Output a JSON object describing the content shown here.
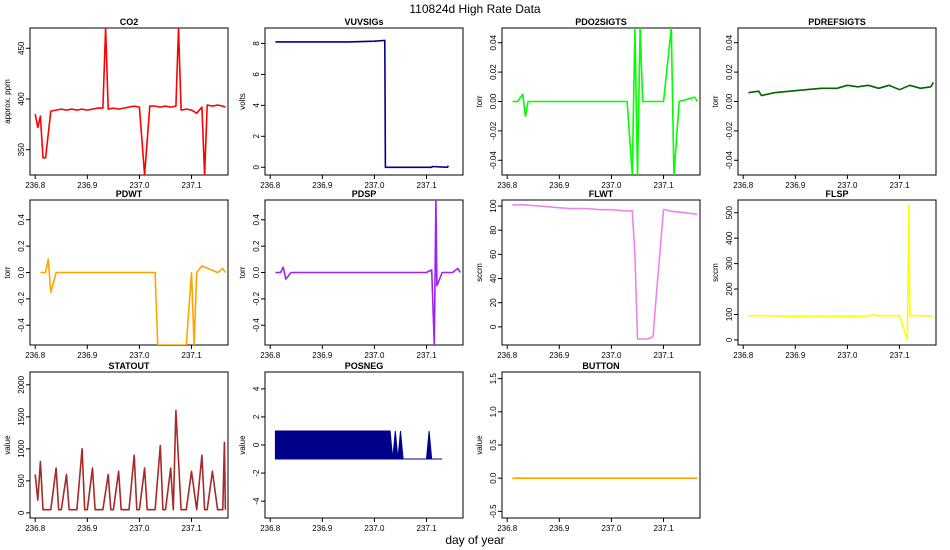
{
  "page": {
    "title": "110824d   High Rate Data",
    "xlabel": "day of year"
  },
  "chart_data": [
    {
      "type": "line",
      "title": "CO2",
      "ylabel": "approx. ppm",
      "color": "#ff0000",
      "xlim": [
        236.79,
        237.17
      ],
      "ylim": [
        325,
        470
      ],
      "xticks": [
        "236.8",
        "236.9",
        "237.0",
        "237.1"
      ],
      "yticks": [
        "350",
        "400",
        "450"
      ],
      "series": [
        {
          "x": [
            236.8,
            236.805,
            236.81,
            236.815,
            236.82,
            236.83,
            236.84,
            236.85,
            236.86,
            236.87,
            236.88,
            236.89,
            236.9,
            236.91,
            236.92,
            236.93,
            236.935,
            236.94,
            236.95,
            236.96,
            236.97,
            236.98,
            236.99,
            237.0,
            237.01,
            237.02,
            237.03,
            237.04,
            237.05,
            237.06,
            237.07,
            237.075,
            237.08,
            237.09,
            237.1,
            237.11,
            237.12,
            237.125,
            237.13,
            237.14,
            237.15,
            237.16,
            237.165
          ],
          "y": [
            385,
            372,
            383,
            342,
            342,
            388,
            389,
            390,
            389,
            390,
            389,
            390,
            389,
            390,
            391,
            391,
            470,
            390,
            391,
            390,
            391,
            392,
            393,
            392,
            325,
            393,
            393,
            392,
            393,
            392,
            393,
            470,
            389,
            390,
            389,
            386,
            392,
            325,
            394,
            393,
            394,
            393,
            392
          ]
        }
      ]
    },
    {
      "type": "line",
      "title": "VUVSIGs",
      "ylabel": "volts",
      "color": "#00008b",
      "xlim": [
        236.79,
        237.17
      ],
      "ylim": [
        -0.5,
        9.0
      ],
      "xticks": [
        "236.8",
        "236.9",
        "237.0",
        "237.1"
      ],
      "yticks": [
        "0",
        "2",
        "4",
        "6",
        "8"
      ],
      "series": [
        {
          "x": [
            236.81,
            236.85,
            236.9,
            236.95,
            237.0,
            237.02,
            237.021,
            237.11,
            237.111,
            237.14,
            237.142
          ],
          "y": [
            8.1,
            8.1,
            8.1,
            8.1,
            8.15,
            8.2,
            0.0,
            0.0,
            0.05,
            0.0,
            0.1
          ]
        }
      ]
    },
    {
      "type": "line",
      "title": "PDO2SIGTS",
      "ylabel": "torr",
      "color": "#00ff00",
      "xlim": [
        236.79,
        237.17
      ],
      "ylim": [
        -0.05,
        0.05
      ],
      "xticks": [
        "236.8",
        "236.9",
        "237.0",
        "237.1"
      ],
      "yticks": [
        "-0.04",
        "-0.02",
        "0.00",
        "0.02",
        "0.04"
      ],
      "series": [
        {
          "x": [
            236.81,
            236.82,
            236.83,
            236.835,
            236.84,
            236.9,
            236.95,
            237.0,
            237.03,
            237.04,
            237.045,
            237.05,
            237.055,
            237.06,
            237.1,
            237.115,
            237.12,
            237.13,
            237.16,
            237.165
          ],
          "y": [
            0.0,
            0.0,
            0.005,
            -0.01,
            0.0,
            0.0,
            0.0,
            0.0,
            0.0,
            -0.05,
            0.05,
            -0.05,
            0.05,
            0.0,
            0.0,
            0.05,
            -0.05,
            0.0,
            0.003,
            0.0
          ]
        }
      ]
    },
    {
      "type": "line",
      "title": "PDREFSIGTS",
      "ylabel": "torr",
      "color": "#006400",
      "xlim": [
        236.79,
        237.17
      ],
      "ylim": [
        -0.05,
        0.05
      ],
      "xticks": [
        "236.8",
        "236.9",
        "237.0",
        "237.1"
      ],
      "yticks": [
        "-0.04",
        "-0.02",
        "0.00",
        "0.02",
        "0.04"
      ],
      "series": [
        {
          "x": [
            236.81,
            236.83,
            236.835,
            236.86,
            236.89,
            236.92,
            236.95,
            236.98,
            237.0,
            237.02,
            237.04,
            237.06,
            237.08,
            237.1,
            237.12,
            237.14,
            237.16,
            237.165
          ],
          "y": [
            0.006,
            0.007,
            0.004,
            0.006,
            0.007,
            0.008,
            0.009,
            0.009,
            0.011,
            0.01,
            0.011,
            0.009,
            0.011,
            0.008,
            0.011,
            0.009,
            0.01,
            0.013
          ]
        }
      ]
    },
    {
      "type": "line",
      "title": "PDWT",
      "ylabel": "torr",
      "color": "#ffa500",
      "xlim": [
        236.79,
        237.17
      ],
      "ylim": [
        -0.55,
        0.55
      ],
      "xticks": [
        "236.8",
        "236.9",
        "237.0",
        "237.1"
      ],
      "yticks": [
        "-0.4",
        "-0.2",
        "0.0",
        "0.2",
        "0.4"
      ],
      "series": [
        {
          "x": [
            236.81,
            236.82,
            236.825,
            236.83,
            236.84,
            236.9,
            236.95,
            237.0,
            237.03,
            237.035,
            237.04,
            237.09,
            237.1,
            237.105,
            237.11,
            237.12,
            237.15,
            237.16,
            237.165
          ],
          "y": [
            0.0,
            0.0,
            0.1,
            -0.15,
            0.0,
            0.0,
            0.0,
            0.0,
            0.0,
            -0.55,
            -0.55,
            -0.55,
            0.0,
            -0.55,
            0.0,
            0.05,
            0.0,
            0.03,
            0.0
          ]
        }
      ]
    },
    {
      "type": "line",
      "title": "PDSP",
      "ylabel": "torr",
      "color": "#a020f0",
      "xlim": [
        236.79,
        237.17
      ],
      "ylim": [
        -0.55,
        0.55
      ],
      "xticks": [
        "236.8",
        "236.9",
        "237.0",
        "237.1"
      ],
      "yticks": [
        "-0.4",
        "-0.2",
        "0.0",
        "0.2",
        "0.4"
      ],
      "series": [
        {
          "x": [
            236.81,
            236.82,
            236.825,
            236.83,
            236.84,
            236.9,
            236.95,
            237.0,
            237.03,
            237.05,
            237.06,
            237.08,
            237.1,
            237.11,
            237.115,
            237.118,
            237.12,
            237.13,
            237.15,
            237.16,
            237.165
          ],
          "y": [
            0.0,
            0.0,
            0.04,
            -0.05,
            0.0,
            0.0,
            0.0,
            0.0,
            0.0,
            0.0,
            0.0,
            0.0,
            0.0,
            0.02,
            -0.55,
            0.55,
            -0.1,
            0.0,
            0.0,
            0.03,
            0.0
          ]
        }
      ]
    },
    {
      "type": "line",
      "title": "FLWT",
      "ylabel": "sccm",
      "color": "#ee82ee",
      "xlim": [
        236.79,
        237.17
      ],
      "ylim": [
        -15,
        105
      ],
      "xticks": [
        "236.8",
        "236.9",
        "237.0",
        "237.1"
      ],
      "yticks": [
        "0",
        "20",
        "40",
        "60",
        "80",
        "100"
      ],
      "series": [
        {
          "x": [
            236.81,
            236.83,
            236.86,
            236.89,
            236.92,
            236.95,
            236.98,
            237.0,
            237.03,
            237.04,
            237.045,
            237.05,
            237.07,
            237.08,
            237.085,
            237.1,
            237.105,
            237.11,
            237.13,
            237.15,
            237.165
          ],
          "y": [
            101,
            101,
            100,
            99,
            98,
            98,
            97,
            97,
            96,
            96,
            60,
            -10,
            -10,
            -8,
            20,
            97,
            97,
            96,
            95,
            94,
            93
          ]
        }
      ]
    },
    {
      "type": "line",
      "title": "FLSP",
      "ylabel": "sccm",
      "color": "#ffff00",
      "xlim": [
        236.79,
        237.17
      ],
      "ylim": [
        -20,
        550
      ],
      "xticks": [
        "236.8",
        "236.9",
        "237.0",
        "237.1"
      ],
      "yticks": [
        "0",
        "100",
        "200",
        "300",
        "400",
        "500"
      ],
      "series": [
        {
          "x": [
            236.81,
            236.85,
            236.9,
            236.95,
            237.0,
            237.04,
            237.05,
            237.055,
            237.1,
            237.115,
            237.118,
            237.12,
            237.125,
            237.14,
            237.165
          ],
          "y": [
            95,
            95,
            93,
            94,
            93,
            94,
            100,
            95,
            95,
            0,
            530,
            95,
            96,
            95,
            94
          ]
        }
      ]
    },
    {
      "type": "line",
      "title": "STATOUT",
      "ylabel": "value",
      "color": "#a52a2a",
      "xlim": [
        236.79,
        237.17
      ],
      "ylim": [
        -80,
        2200
      ],
      "xticks": [
        "236.8",
        "236.9",
        "237.0",
        "237.1"
      ],
      "yticks": [
        "0",
        "500",
        "1000",
        "1500",
        "2000"
      ],
      "series": [
        {
          "x": [
            236.8,
            236.805,
            236.81,
            236.815,
            236.82,
            236.83,
            236.84,
            236.845,
            236.85,
            236.86,
            236.865,
            236.87,
            236.88,
            236.89,
            236.895,
            236.9,
            236.91,
            236.915,
            236.92,
            236.93,
            236.94,
            236.945,
            236.95,
            236.96,
            236.965,
            236.97,
            236.98,
            236.99,
            236.995,
            237.0,
            237.01,
            237.015,
            237.02,
            237.03,
            237.04,
            237.045,
            237.05,
            237.06,
            237.065,
            237.07,
            237.08,
            237.085,
            237.09,
            237.1,
            237.11,
            237.12,
            237.125,
            237.13,
            237.14,
            237.15,
            237.16,
            237.163,
            237.165
          ],
          "y": [
            600,
            200,
            800,
            50,
            50,
            50,
            700,
            50,
            50,
            600,
            50,
            50,
            50,
            1000,
            50,
            50,
            700,
            50,
            50,
            50,
            600,
            50,
            50,
            650,
            50,
            50,
            50,
            900,
            50,
            50,
            700,
            50,
            50,
            50,
            1050,
            50,
            50,
            700,
            50,
            1600,
            50,
            50,
            50,
            650,
            50,
            900,
            50,
            50,
            650,
            50,
            50,
            1100,
            50
          ]
        }
      ]
    },
    {
      "type": "area",
      "title": "POSNEG",
      "ylabel": "value",
      "color": "#00008b",
      "xlim": [
        236.79,
        237.17
      ],
      "ylim": [
        -5.2,
        5.2
      ],
      "xticks": [
        "236.8",
        "236.9",
        "237.0",
        "237.1"
      ],
      "yticks": [
        "-4",
        "-2",
        "0",
        "2",
        "4"
      ],
      "series": [
        {
          "x": [
            236.81,
            237.03,
            237.035,
            237.04,
            237.045,
            237.05,
            237.055,
            237.06,
            237.1,
            237.105,
            237.11,
            237.13
          ],
          "y_upper": [
            1,
            1,
            -1,
            1,
            -1,
            1,
            -1,
            -1,
            -1,
            1,
            -1,
            -1
          ],
          "y_lower": [
            -1,
            -1,
            -1,
            -1,
            -1,
            -1,
            -1,
            -1,
            -1,
            -1,
            -1,
            -1
          ]
        }
      ]
    },
    {
      "type": "line",
      "title": "BUTTON",
      "ylabel": "value",
      "color": "#ffa500",
      "xlim": [
        236.79,
        237.17
      ],
      "ylim": [
        -0.6,
        1.6
      ],
      "xticks": [
        "236.8",
        "236.9",
        "237.0",
        "237.1"
      ],
      "yticks": [
        "-0.5",
        "0.0",
        "0.5",
        "1.0",
        "1.5"
      ],
      "series": [
        {
          "x": [
            236.81,
            237.165
          ],
          "y": [
            0,
            0
          ]
        }
      ]
    }
  ]
}
